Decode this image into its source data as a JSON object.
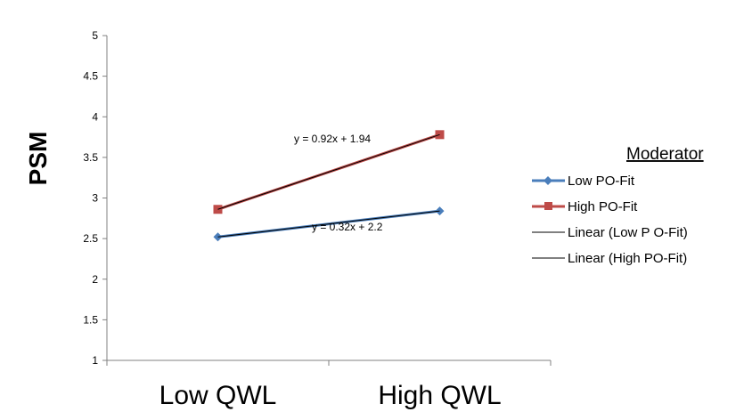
{
  "chart_data": {
    "type": "line",
    "categories": [
      "Low QWL",
      "High QWL"
    ],
    "ylabel": "PSM",
    "xlabel": "",
    "ylim": [
      1,
      5
    ],
    "yticks": [
      "1",
      "1.5",
      "2",
      "2.5",
      "3",
      "3.5",
      "4",
      "4.5",
      "5"
    ],
    "grid": false,
    "legend": {
      "title": "Moderator",
      "placement": "right"
    },
    "series": [
      {
        "name": "Low PO-Fit",
        "values": [
          2.52,
          2.84
        ],
        "color": "#4a7ebb",
        "marker": "diamond"
      },
      {
        "name": "High PO-Fit",
        "values": [
          2.86,
          3.78
        ],
        "color": "#be4b48",
        "marker": "square"
      }
    ],
    "trendlines": [
      {
        "name": "Linear (Low P O-Fit)",
        "equation": "y = 0.32x + 2.2",
        "slope": 0.32,
        "intercept": 2.2,
        "color": "#000000"
      },
      {
        "name": "Linear (High PO-Fit)",
        "equation": "y = 0.92x + 1.94",
        "slope": 0.92,
        "intercept": 1.94,
        "color": "#000000"
      }
    ]
  }
}
